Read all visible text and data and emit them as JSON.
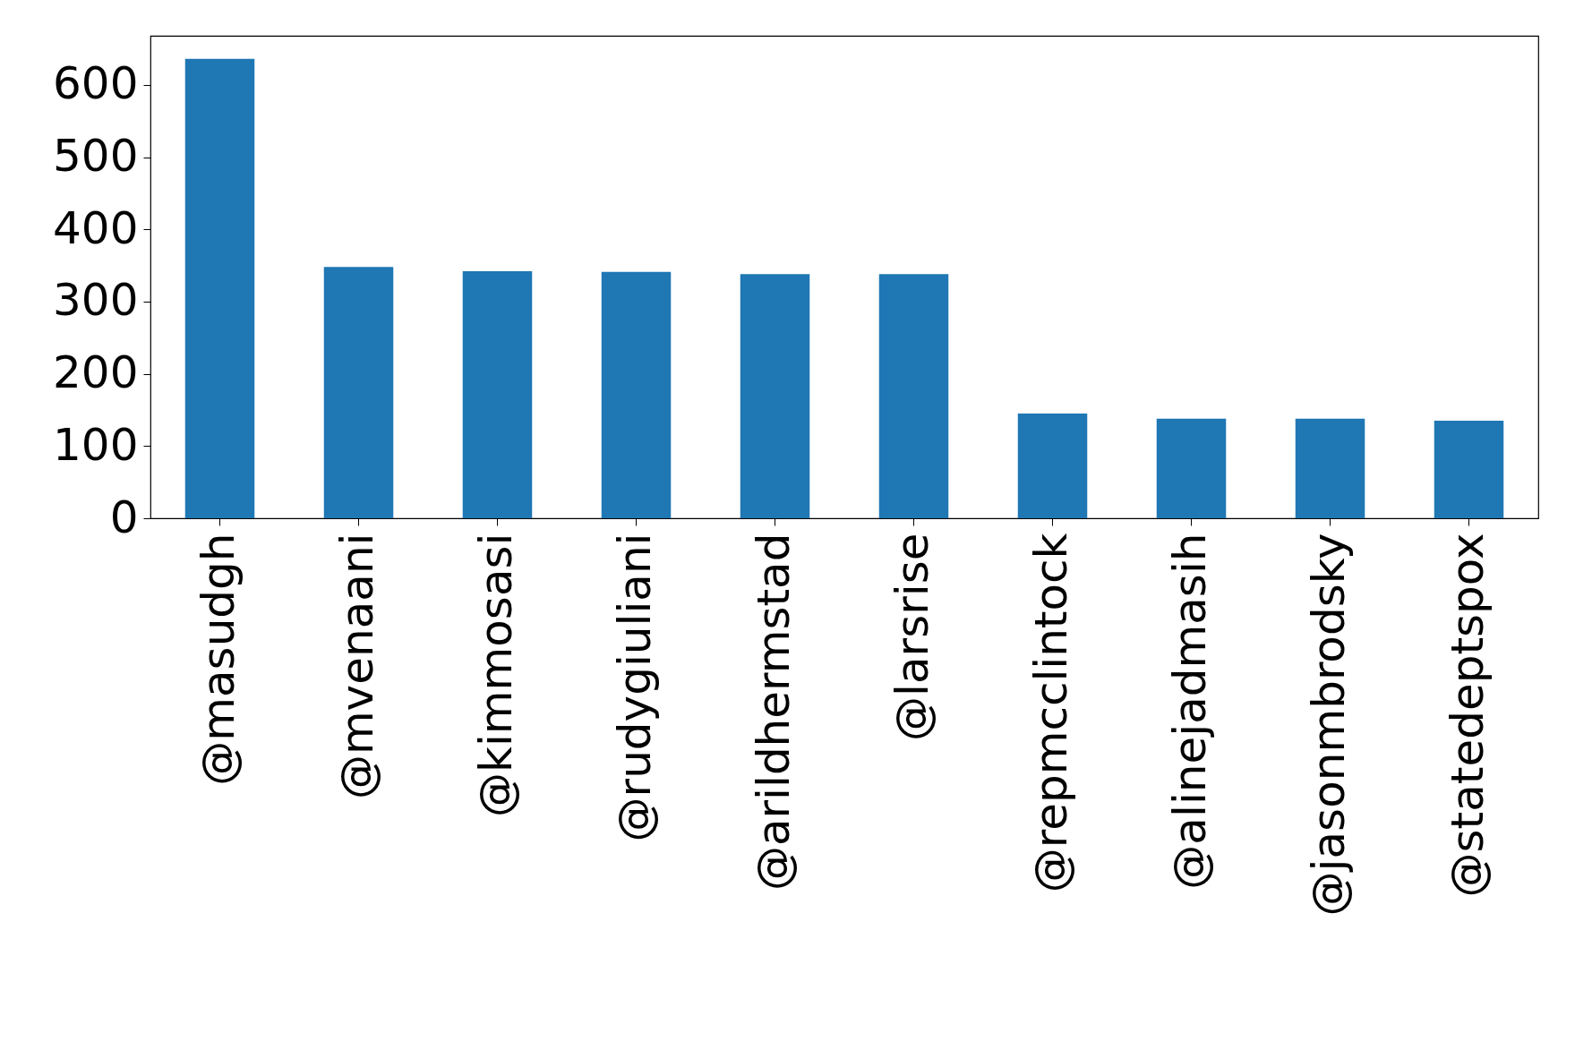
{
  "chart_data": {
    "type": "bar",
    "categories": [
      "@masudgh",
      "@mvenaani",
      "@kimmosasi",
      "@rudygiuliani",
      "@arildhermstad",
      "@larsrise",
      "@repmcclintock",
      "@alinejadmasih",
      "@jasonmbrodsky",
      "@statedeptspox"
    ],
    "values": [
      636,
      348,
      342,
      341,
      338,
      338,
      145,
      138,
      138,
      135
    ],
    "color": "#1f77b4",
    "ylim": [
      0,
      668
    ],
    "yticks": [
      0,
      100,
      200,
      300,
      400,
      500,
      600
    ],
    "grid": false
  }
}
